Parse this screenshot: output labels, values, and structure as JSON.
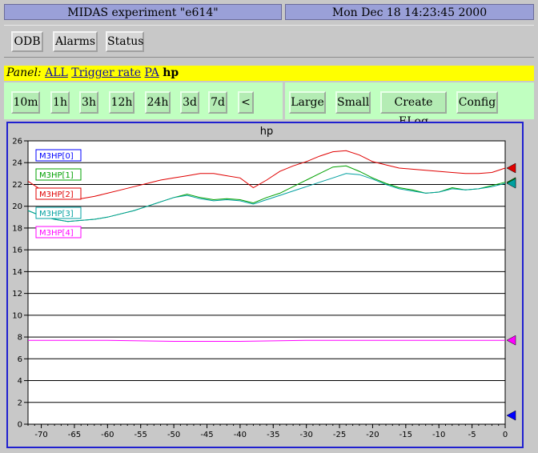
{
  "header": {
    "title": "MIDAS experiment \"e614\"",
    "datetime": "Mon Dec 18 14:23:45 2000"
  },
  "toolbar": {
    "buttons": [
      "ODB",
      "Alarms",
      "Status"
    ]
  },
  "panel": {
    "label": "Panel:",
    "links": [
      "ALL",
      "Trigger rate",
      "PA"
    ],
    "current": "hp"
  },
  "time_buttons": [
    "10m",
    "1h",
    "3h",
    "12h",
    "24h",
    "3d",
    "7d",
    "<"
  ],
  "action_buttons": [
    "Large",
    "Small",
    "Create ELog",
    "Config"
  ],
  "chart_data": {
    "type": "line",
    "title": "hp",
    "xlim": [
      -72,
      0
    ],
    "ylim": [
      0,
      26
    ],
    "xticks": [
      -70,
      -65,
      -60,
      -55,
      -50,
      -45,
      -40,
      -35,
      -30,
      -25,
      -20,
      -15,
      -10,
      -5,
      0
    ],
    "yticks": [
      0,
      2,
      4,
      6,
      8,
      10,
      12,
      14,
      16,
      18,
      20,
      22,
      24,
      26
    ],
    "grid": "horizontal",
    "legend": "top-left",
    "series": [
      {
        "name": "M3HP[0]",
        "color": "#0000ff",
        "x": [],
        "y": [],
        "last": 0.8
      },
      {
        "name": "M3HP[1]",
        "color": "#00a000",
        "x": [
          -72,
          -70,
          -68,
          -66,
          -64,
          -62,
          -60,
          -58,
          -56,
          -54,
          -52,
          -50,
          -48,
          -46,
          -44,
          -42,
          -40,
          -38,
          -36,
          -34,
          -32,
          -30,
          -28,
          -26,
          -24,
          -22,
          -20,
          -18,
          -16,
          -14,
          -12,
          -10,
          -8,
          -6,
          -4,
          -2,
          0
        ],
        "y": [
          19.6,
          19.1,
          18.8,
          18.6,
          18.7,
          18.8,
          19.0,
          19.3,
          19.6,
          20.0,
          20.4,
          20.8,
          21.1,
          20.8,
          20.6,
          20.7,
          20.6,
          20.3,
          20.8,
          21.2,
          21.8,
          22.4,
          23.0,
          23.6,
          23.7,
          23.2,
          22.6,
          22.1,
          21.7,
          21.5,
          21.2,
          21.3,
          21.7,
          21.5,
          21.6,
          21.9,
          22.2
        ],
        "last": 22.2
      },
      {
        "name": "M3HP[2]",
        "color": "#e00000",
        "x": [
          -72,
          -70,
          -68,
          -66,
          -64,
          -62,
          -60,
          -58,
          -56,
          -54,
          -52,
          -50,
          -48,
          -46,
          -44,
          -42,
          -40,
          -38,
          -36,
          -34,
          -32,
          -30,
          -28,
          -26,
          -24,
          -22,
          -20,
          -18,
          -16,
          -14,
          -12,
          -10,
          -8,
          -6,
          -4,
          -2,
          0
        ],
        "y": [
          22.3,
          21.5,
          21.1,
          20.9,
          20.7,
          20.9,
          21.2,
          21.5,
          21.8,
          22.1,
          22.4,
          22.6,
          22.8,
          23.0,
          23.0,
          22.8,
          22.6,
          21.7,
          22.4,
          23.2,
          23.7,
          24.1,
          24.6,
          25.0,
          25.1,
          24.7,
          24.1,
          23.8,
          23.5,
          23.4,
          23.3,
          23.2,
          23.1,
          23.0,
          23.0,
          23.1,
          23.5
        ],
        "last": 23.5
      },
      {
        "name": "M3HP[3]",
        "color": "#00a0a0",
        "x": [
          -72,
          -70,
          -68,
          -66,
          -64,
          -62,
          -60,
          -58,
          -56,
          -54,
          -52,
          -50,
          -48,
          -46,
          -44,
          -42,
          -40,
          -38,
          -36,
          -34,
          -32,
          -30,
          -28,
          -26,
          -24,
          -22,
          -20,
          -18,
          -16,
          -14,
          -12,
          -10,
          -8,
          -6,
          -4,
          -2,
          0
        ],
        "y": [
          19.6,
          19.1,
          18.8,
          18.6,
          18.7,
          18.8,
          19.0,
          19.3,
          19.6,
          20.0,
          20.4,
          20.8,
          21.0,
          20.7,
          20.5,
          20.6,
          20.5,
          20.2,
          20.6,
          21.0,
          21.4,
          21.8,
          22.2,
          22.6,
          23.0,
          22.9,
          22.5,
          22.0,
          21.6,
          21.4,
          21.2,
          21.3,
          21.6,
          21.5,
          21.6,
          21.8,
          22.1
        ],
        "last": 22.1
      },
      {
        "name": "M3HP[4]",
        "color": "#ff00ff",
        "x": [
          -72,
          -60,
          -50,
          -40,
          -30,
          -20,
          -10,
          0
        ],
        "y": [
          7.7,
          7.7,
          7.6,
          7.6,
          7.7,
          7.7,
          7.7,
          7.7
        ],
        "last": 7.7
      }
    ]
  }
}
